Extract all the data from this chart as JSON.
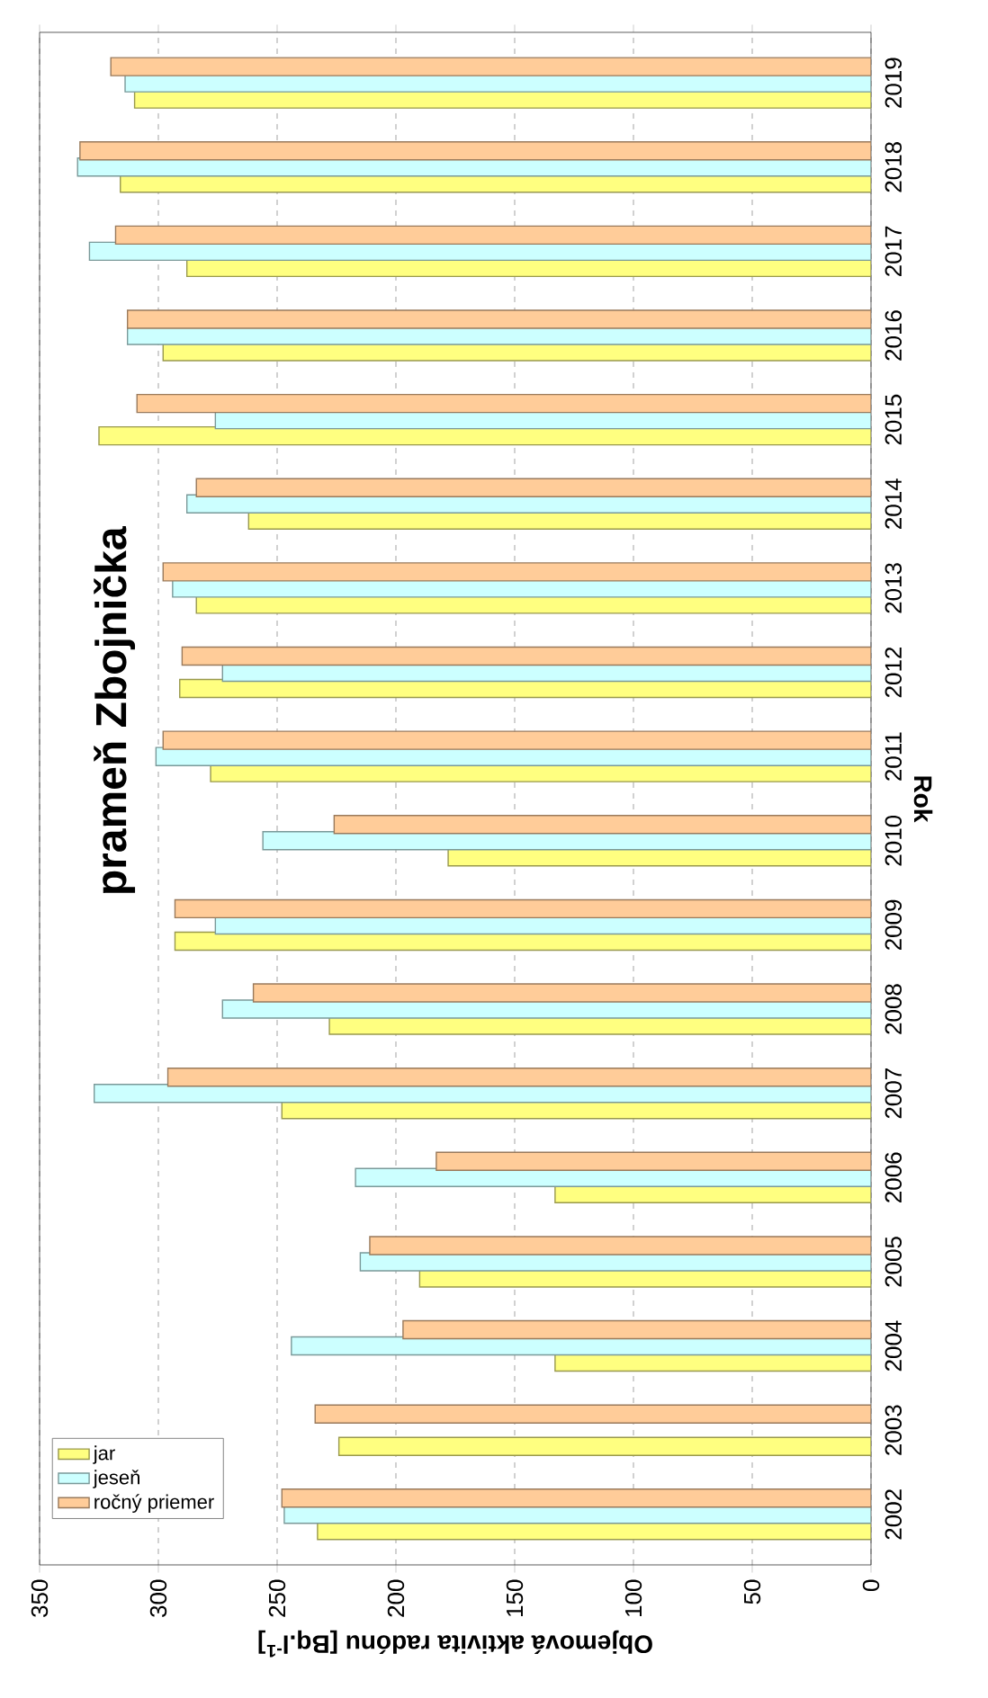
{
  "chart_data": {
    "type": "bar",
    "orientation": "horizontal",
    "title": "prameň Zbojnička",
    "xlabel": "Objemová aktivita radónu [Bq.l$^{-1}$]",
    "ylabel": "Rok",
    "categories": [
      "2019",
      "2018",
      "2017",
      "2016",
      "2015",
      "2014",
      "2013",
      "2012",
      "2011",
      "2010",
      "2009",
      "2008",
      "2007",
      "2006",
      "2005",
      "2004",
      "2003",
      "2002"
    ],
    "series": [
      {
        "name": "jar",
        "color": "#ffff80",
        "values": [
          310,
          316,
          288,
          298,
          325,
          262,
          284,
          291,
          278,
          178,
          293,
          228,
          248,
          133,
          190,
          133,
          224,
          233
        ]
      },
      {
        "name": "jeseň",
        "color": "#ccffff",
        "values": [
          314,
          334,
          329,
          313,
          276,
          288,
          294,
          273,
          301,
          256,
          276,
          273,
          327,
          217,
          215,
          244,
          null,
          247
        ]
      },
      {
        "name": "ročný priemer",
        "color": "#ffcc99",
        "values": [
          320,
          333,
          318,
          313,
          309,
          284,
          298,
          290,
          298,
          226,
          293,
          260,
          296,
          183,
          211,
          197,
          234,
          248
        ]
      }
    ],
    "xlim": [
      350,
      0
    ],
    "xticks": [
      0,
      50,
      100,
      150,
      200,
      250,
      300,
      350
    ],
    "grid": "x",
    "legend": "bottom left"
  }
}
